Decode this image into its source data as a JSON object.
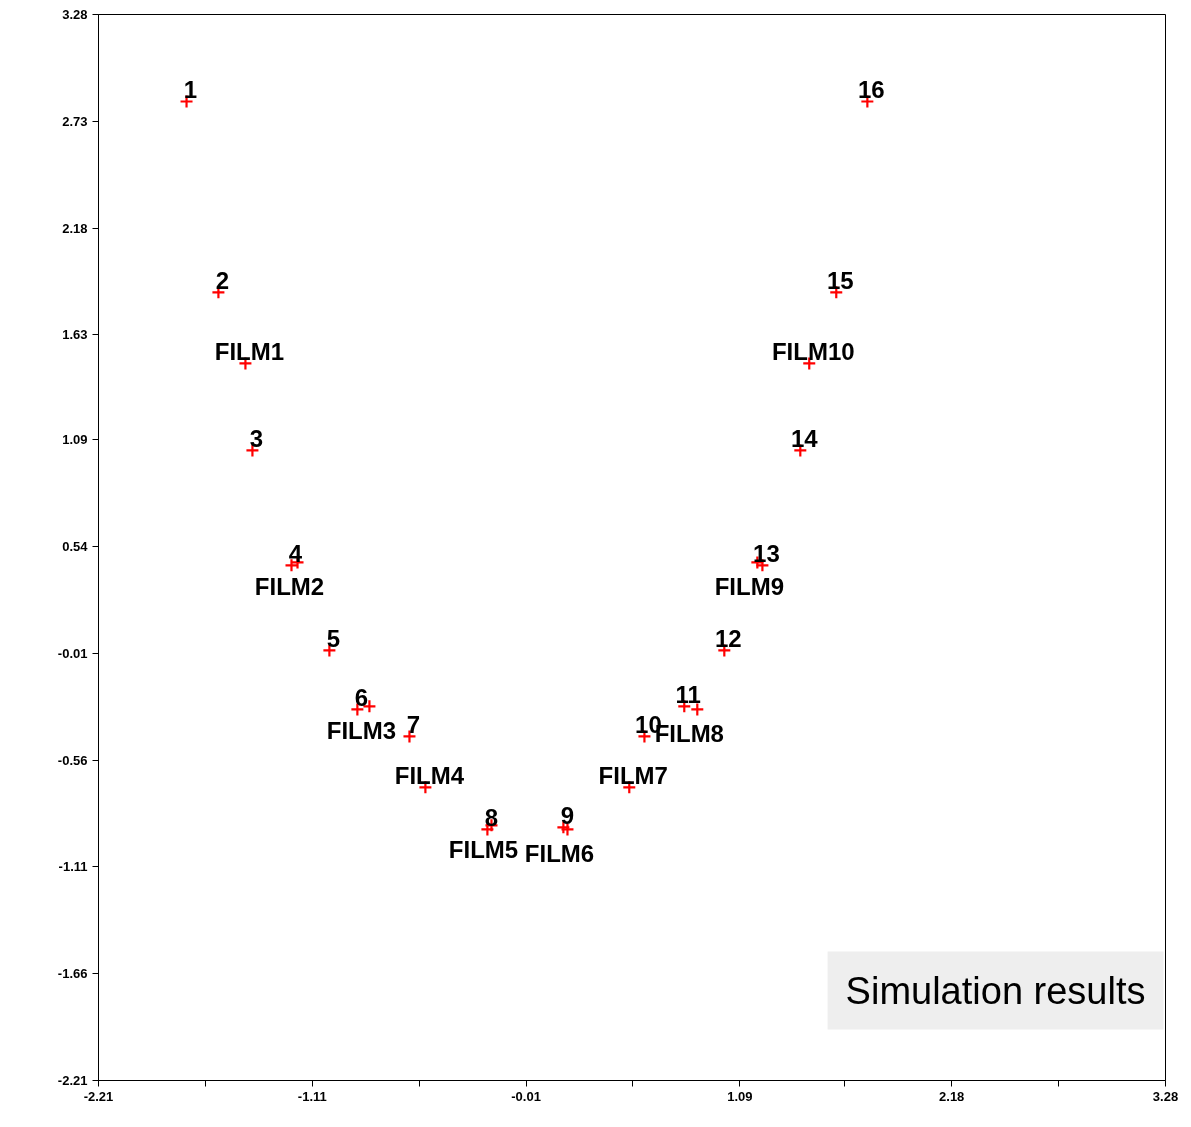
{
  "chart_data": {
    "type": "scatter",
    "marker": "cross",
    "grid": false,
    "x": [
      -1.757,
      -1.593,
      -1.454,
      -1.418,
      -1.217,
      -1.186,
      -1.022,
      -0.878,
      -0.816,
      -0.61,
      -0.528,
      -0.209,
      -0.188,
      0.182,
      0.203,
      0.521,
      0.599,
      0.804,
      0.871,
      1.01,
      1.206,
      1.18,
      1.401,
      1.447,
      1.586,
      1.746
    ],
    "series": [
      {
        "color": "#ff0000",
        "values": [
          2.832,
          1.849,
          1.483,
          1.035,
          0.443,
          0.458,
          0.005,
          -0.299,
          -0.283,
          -0.438,
          -0.7,
          -0.917,
          -0.896,
          -0.906,
          -0.917,
          -0.7,
          -0.438,
          -0.283,
          -0.299,
          0.005,
          0.443,
          0.458,
          1.035,
          1.483,
          1.849,
          2.832
        ]
      }
    ],
    "xlim": [
      -2.21,
      3.28
    ],
    "ylim": [
      -2.21,
      3.28
    ],
    "xticks": [
      -2.21,
      {
        "value": -1.66,
        "label": null
      },
      -1.11,
      {
        "value": -0.56,
        "label": null
      },
      -0.01,
      {
        "value": 0.54,
        "label": null
      },
      1.09,
      {
        "value": 1.63,
        "label": null
      },
      2.18,
      {
        "value": 2.73,
        "label": null
      },
      3.28
    ],
    "yticks": [
      -2.21,
      -1.66,
      -1.11,
      -0.56,
      -0.01,
      0.54,
      1.09,
      1.63,
      2.18,
      2.73,
      3.28
    ],
    "annotations": [
      {
        "text": "1",
        "x": -1.757,
        "y": 2.832
      },
      {
        "text": "2",
        "x": -1.593,
        "y": 1.849
      },
      {
        "text": "FILM1",
        "x": -1.454,
        "y": 1.483
      },
      {
        "text": "3",
        "x": -1.418,
        "y": 1.035
      },
      {
        "text": "4",
        "x": -1.217,
        "y": 0.443
      },
      {
        "text": "FILM2",
        "x": -1.186,
        "y": 0.458
      },
      {
        "text": "5",
        "x": -1.022,
        "y": 0.005
      },
      {
        "text": "6",
        "x": -0.878,
        "y": -0.299
      },
      {
        "text": "FILM3",
        "x": -0.816,
        "y": -0.283
      },
      {
        "text": "7",
        "x": -0.61,
        "y": -0.438
      },
      {
        "text": "FILM4",
        "x": -0.528,
        "y": -0.7
      },
      {
        "text": "8",
        "x": -0.209,
        "y": -0.917
      },
      {
        "text": "FILM5",
        "x": -0.188,
        "y": -0.896
      },
      {
        "text": "9",
        "x": 0.182,
        "y": -0.906
      },
      {
        "text": "FILM6",
        "x": 0.203,
        "y": -0.917
      },
      {
        "text": "FILM7",
        "x": 0.521,
        "y": -0.7
      },
      {
        "text": "10",
        "x": 0.599,
        "y": -0.438
      },
      {
        "text": "11",
        "x": 0.804,
        "y": -0.283
      },
      {
        "text": "FILM8",
        "x": 0.871,
        "y": -0.299
      },
      {
        "text": "12",
        "x": 1.01,
        "y": 0.005
      },
      {
        "text": "13",
        "x": 1.206,
        "y": 0.443
      },
      {
        "text": "FILM9",
        "x": 1.18,
        "y": 0.458
      },
      {
        "text": "14",
        "x": 1.401,
        "y": 1.035
      },
      {
        "text": "FILM10",
        "x": 1.447,
        "y": 1.483
      },
      {
        "text": "15",
        "x": 1.586,
        "y": 1.849
      },
      {
        "text": "16",
        "x": 1.746,
        "y": 2.832
      },
      "Simulation results"
    ]
  }
}
